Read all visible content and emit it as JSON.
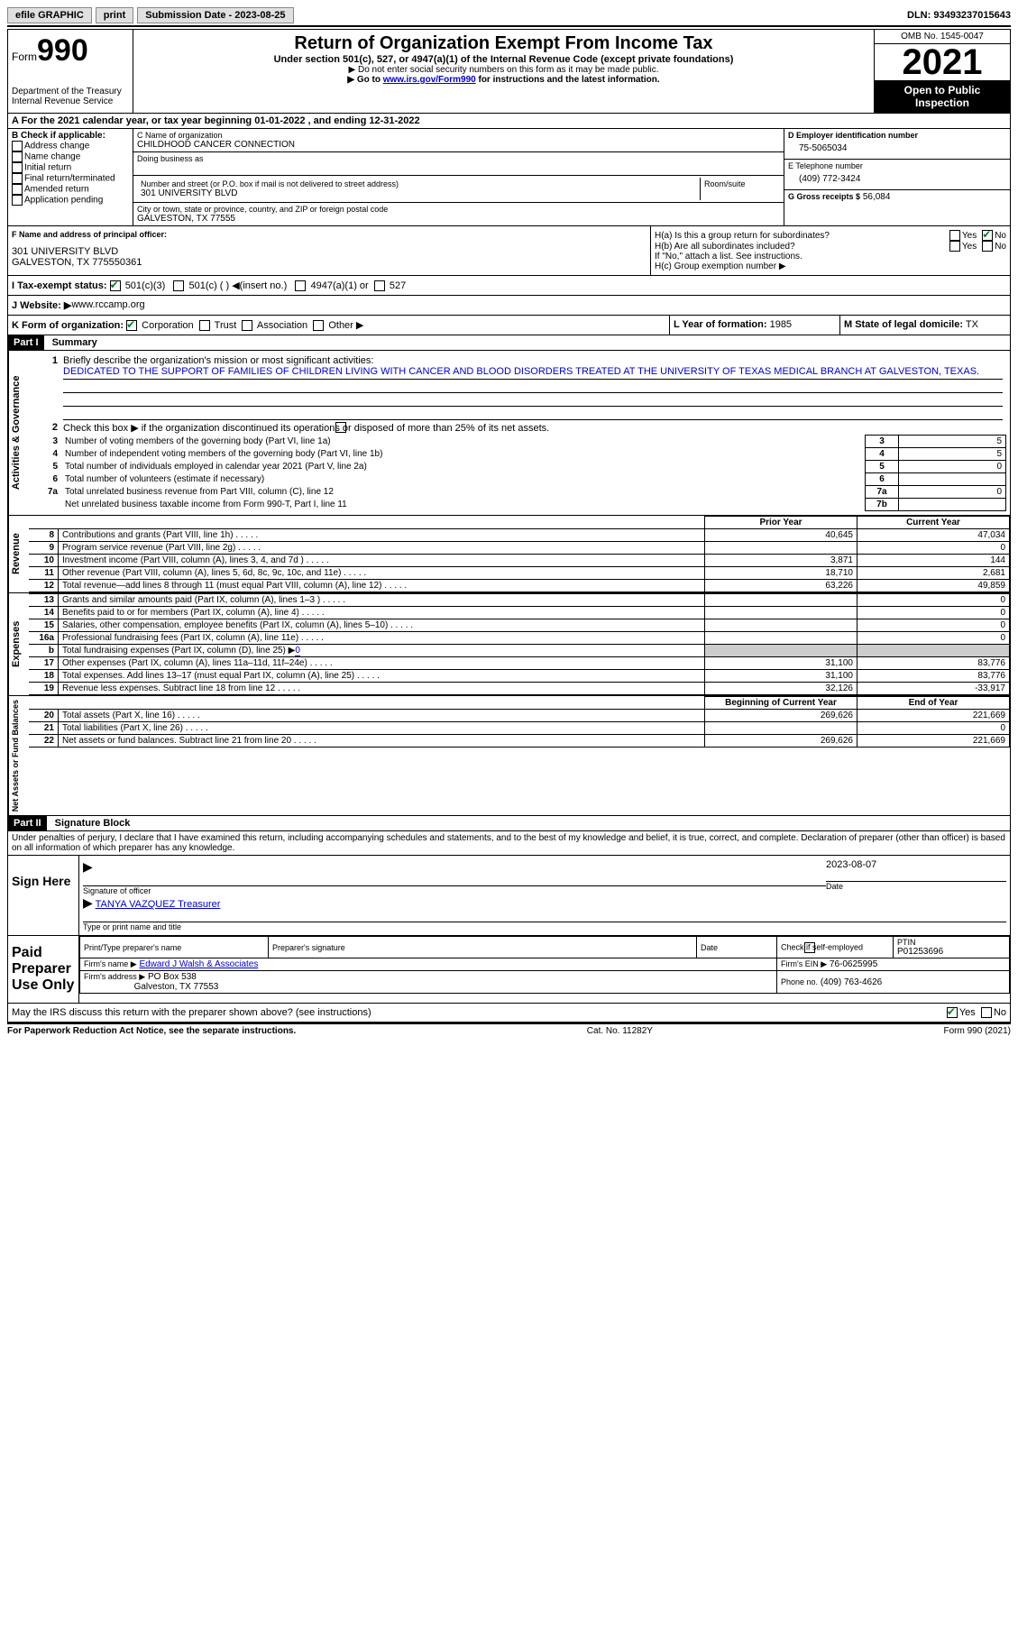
{
  "topbar": {
    "efile": "efile GRAPHIC",
    "print": "print",
    "sub_label": "Submission Date - 2023-08-25",
    "dln": "DLN: 93493237015643"
  },
  "header": {
    "form": "Form",
    "num": "990",
    "dept": "Department of the Treasury",
    "irs": "Internal Revenue Service",
    "title": "Return of Organization Exempt From Income Tax",
    "sub": "Under section 501(c), 527, or 4947(a)(1) of the Internal Revenue Code (except private foundations)",
    "note1": "▶ Do not enter social security numbers on this form as it may be made public.",
    "note2_pre": "▶ Go to ",
    "note2_link": "www.irs.gov/Form990",
    "note2_post": " for instructions and the latest information.",
    "omb": "OMB No. 1545-0047",
    "year": "2021",
    "open": "Open to Public Inspection"
  },
  "line_a": "A For the 2021 calendar year, or tax year beginning 01-01-2022   , and ending 12-31-2022",
  "box_b": {
    "label": "B Check if applicable:",
    "items": [
      "Address change",
      "Name change",
      "Initial return",
      "Final return/terminated",
      "Amended return",
      "Application pending"
    ]
  },
  "box_c": {
    "label_name": "C Name of organization",
    "org": "CHILDHOOD CANCER CONNECTION",
    "dba": "Doing business as",
    "addr_label": "Number and street (or P.O. box if mail is not delivered to street address)",
    "room": "Room/suite",
    "addr": "301 UNIVERSITY BLVD",
    "city_label": "City or town, state or province, country, and ZIP or foreign postal code",
    "city": "GALVESTON, TX  77555"
  },
  "box_d": {
    "label": "D Employer identification number",
    "ein": "75-5065034"
  },
  "box_e": {
    "label": "E Telephone number",
    "phone": "(409) 772-3424"
  },
  "box_g": {
    "label": "G Gross receipts $",
    "val": "56,084"
  },
  "box_f": {
    "label": "F  Name and address of principal officer:",
    "addr1": "301 UNIVERSITY BLVD",
    "addr2": "GALVESTON, TX  775550361"
  },
  "box_h": {
    "a": "H(a)  Is this a group return for subordinates?",
    "b": "H(b)  Are all subordinates included?",
    "note": "If \"No,\" attach a list. See instructions.",
    "c": "H(c)  Group exemption number ▶"
  },
  "tax_exempt": {
    "label": "I   Tax-exempt status:",
    "opt1": "501(c)(3)",
    "opt2": "501(c) (  ) ◀(insert no.)",
    "opt3": "4947(a)(1) or",
    "opt4": "527"
  },
  "website": {
    "label": "J  Website: ▶",
    "val": "  www.rccamp.org"
  },
  "box_k": {
    "label": "K Form of organization:",
    "opts": [
      "Corporation",
      "Trust",
      "Association",
      "Other ▶"
    ]
  },
  "box_l": {
    "label": "L Year of formation:",
    "val": "1985"
  },
  "box_m": {
    "label": "M State of legal domicile:",
    "val": "TX"
  },
  "part1": {
    "header": "Part I",
    "title": "Summary",
    "q1": "Briefly describe the organization's mission or most significant activities:",
    "mission": "DEDICATED TO THE SUPPORT OF FAMILIES OF CHILDREN LIVING WITH CANCER AND BLOOD DISORDERS TREATED AT THE UNIVERSITY OF TEXAS MEDICAL BRANCH AT GALVESTON, TEXAS.",
    "q2": "Check this box ▶       if the organization discontinued its operations or disposed of more than 25% of its net assets.",
    "lines": {
      "3": {
        "t": "Number of voting members of the governing body (Part VI, line 1a)",
        "v": "5"
      },
      "4": {
        "t": "Number of independent voting members of the governing body (Part VI, line 1b)",
        "v": "5"
      },
      "5": {
        "t": "Total number of individuals employed in calendar year 2021 (Part V, line 2a)",
        "v": "0"
      },
      "6": {
        "t": "Total number of volunteers (estimate if necessary)",
        "v": ""
      },
      "7a": {
        "t": "Total unrelated business revenue from Part VIII, column (C), line 12",
        "v": "0"
      },
      "7b": {
        "t": "Net unrelated business taxable income from Form 990-T, Part I, line 11",
        "v": ""
      }
    },
    "vert1": "Activities & Governance",
    "col_prior": "Prior Year",
    "col_curr": "Current Year",
    "rev_label": "Revenue",
    "rev": [
      {
        "n": "8",
        "t": "Contributions and grants (Part VIII, line 1h)",
        "p": "40,645",
        "c": "47,034"
      },
      {
        "n": "9",
        "t": "Program service revenue (Part VIII, line 2g)",
        "p": "",
        "c": "0"
      },
      {
        "n": "10",
        "t": "Investment income (Part VIII, column (A), lines 3, 4, and 7d )",
        "p": "3,871",
        "c": "144"
      },
      {
        "n": "11",
        "t": "Other revenue (Part VIII, column (A), lines 5, 6d, 8c, 9c, 10c, and 11e)",
        "p": "18,710",
        "c": "2,681"
      },
      {
        "n": "12",
        "t": "Total revenue—add lines 8 through 11 (must equal Part VIII, column (A), line 12)",
        "p": "63,226",
        "c": "49,859"
      }
    ],
    "exp_label": "Expenses",
    "exp": [
      {
        "n": "13",
        "t": "Grants and similar amounts paid (Part IX, column (A), lines 1–3 )",
        "p": "",
        "c": "0"
      },
      {
        "n": "14",
        "t": "Benefits paid to or for members (Part IX, column (A), line 4)",
        "p": "",
        "c": "0"
      },
      {
        "n": "15",
        "t": "Salaries, other compensation, employee benefits (Part IX, column (A), lines 5–10)",
        "p": "",
        "c": "0"
      },
      {
        "n": "16a",
        "t": "Professional fundraising fees (Part IX, column (A), line 11e)",
        "p": "",
        "c": "0"
      },
      {
        "n": "b",
        "t": "Total fundraising expenses (Part IX, column (D), line 25) ▶",
        "v": "0"
      },
      {
        "n": "17",
        "t": "Other expenses (Part IX, column (A), lines 11a–11d, 11f–24e)",
        "p": "31,100",
        "c": "83,776"
      },
      {
        "n": "18",
        "t": "Total expenses. Add lines 13–17 (must equal Part IX, column (A), line 25)",
        "p": "31,100",
        "c": "83,776"
      },
      {
        "n": "19",
        "t": "Revenue less expenses. Subtract line 18 from line 12",
        "p": "32,126",
        "c": "-33,917"
      }
    ],
    "na_label": "Net Assets or Fund Balances",
    "col_beg": "Beginning of Current Year",
    "col_end": "End of Year",
    "na": [
      {
        "n": "20",
        "t": "Total assets (Part X, line 16)",
        "p": "269,626",
        "c": "221,669"
      },
      {
        "n": "21",
        "t": "Total liabilities (Part X, line 26)",
        "p": "",
        "c": "0"
      },
      {
        "n": "22",
        "t": "Net assets or fund balances. Subtract line 21 from line 20",
        "p": "269,626",
        "c": "221,669"
      }
    ]
  },
  "part2": {
    "header": "Part II",
    "title": "Signature Block",
    "decl": "Under penalties of perjury, I declare that I have examined this return, including accompanying schedules and statements, and to the best of my knowledge and belief, it is true, correct, and complete. Declaration of preparer (other than officer) is based on all information of which preparer has any knowledge.",
    "sign_here": "Sign Here",
    "sig_officer": "Signature of officer",
    "date_label": "Date",
    "sig_date": "2023-08-07",
    "name_title": "TANYA VAZQUEZ  Treasurer",
    "name_label": "Type or print name and title",
    "paid": "Paid Preparer Use Only",
    "prep_name_label": "Print/Type preparer's name",
    "prep_sig_label": "Preparer's signature",
    "check_self": "Check         if self-employed",
    "ptin_label": "PTIN",
    "ptin": "P01253696",
    "firm_name_label": "Firm's name    ▶",
    "firm_name": "Edward J Walsh & Associates",
    "firm_ein_label": "Firm's EIN ▶",
    "firm_ein": "76-0625995",
    "firm_addr_label": "Firm's address ▶",
    "firm_addr": "PO Box 538",
    "firm_city": "Galveston, TX  77553",
    "phone_label": "Phone no.",
    "phone": "(409) 763-4626",
    "discuss": "May the IRS discuss this return with the preparer shown above? (see instructions)"
  },
  "footer": {
    "left": "For Paperwork Reduction Act Notice, see the separate instructions.",
    "mid": "Cat. No. 11282Y",
    "right": "Form 990 (2021)"
  },
  "yn": {
    "yes": "Yes",
    "no": "No"
  }
}
